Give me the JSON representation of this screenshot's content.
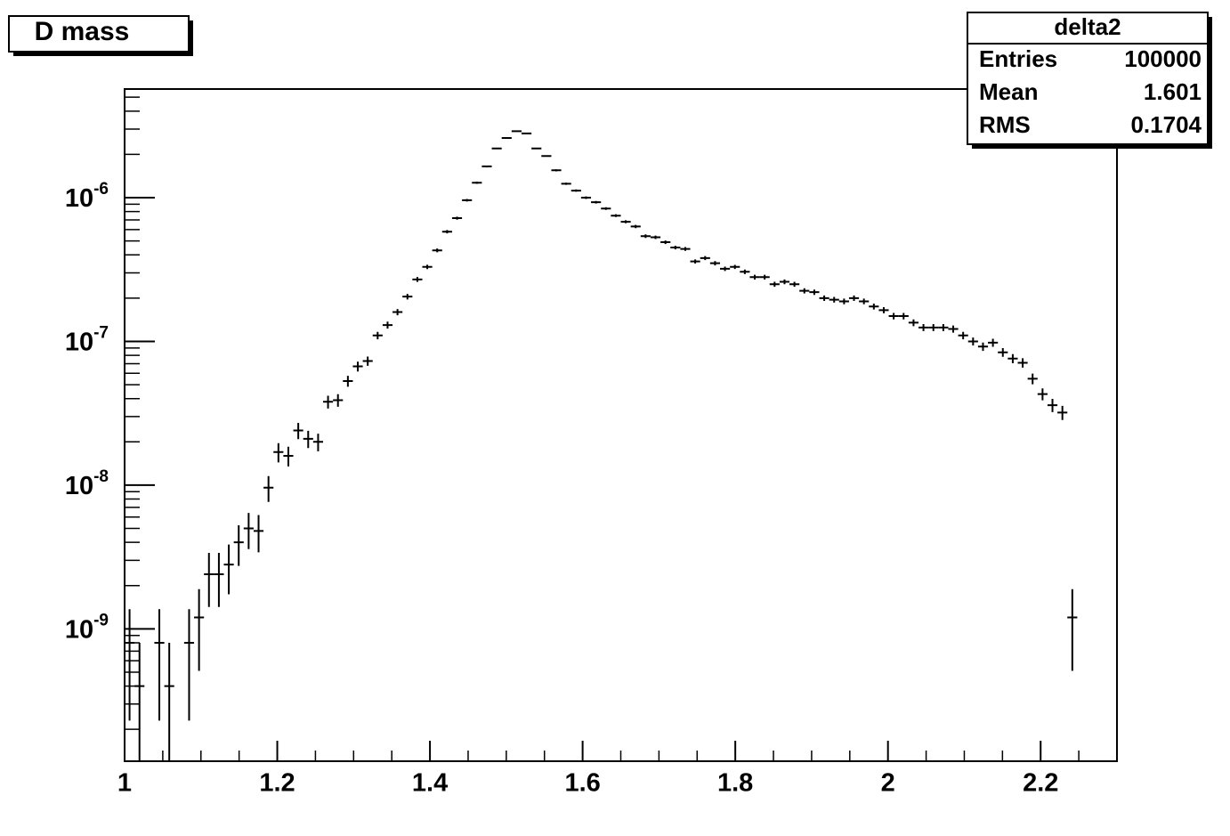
{
  "chart_data": {
    "type": "histogram",
    "title": "D mass",
    "log_y": true,
    "color": "#000000",
    "bins": [
      1,
      1.013,
      1.026,
      1.039,
      1.052,
      1.065,
      1.078,
      1.091,
      1.104,
      1.117,
      1.13,
      1.143,
      1.156,
      1.169,
      1.182,
      1.195,
      1.208,
      1.221,
      1.234,
      1.247,
      1.26,
      1.273,
      1.286,
      1.299,
      1.312,
      1.325,
      1.338,
      1.351,
      1.364,
      1.377,
      1.39,
      1.403,
      1.416,
      1.429,
      1.442,
      1.455,
      1.468,
      1.481,
      1.494,
      1.507,
      1.52,
      1.533,
      1.546,
      1.559,
      1.572,
      1.585,
      1.598,
      1.611,
      1.624,
      1.637,
      1.65,
      1.663,
      1.676,
      1.689,
      1.702,
      1.715,
      1.728,
      1.741,
      1.754,
      1.767,
      1.78,
      1.793,
      1.806,
      1.819,
      1.832,
      1.845,
      1.858,
      1.871,
      1.884,
      1.897,
      1.91,
      1.923,
      1.936,
      1.949,
      1.962,
      1.975,
      1.988,
      2.001,
      2.014,
      2.027,
      2.04,
      2.053,
      2.066,
      2.079,
      2.092,
      2.105,
      2.118,
      2.131,
      2.144,
      2.157,
      2.17,
      2.183,
      2.196,
      2.209,
      2.222,
      2.235,
      2.248,
      2.261,
      2.274,
      2.287,
      2.3
    ],
    "values": [
      8e-10,
      4e-10,
      null,
      8e-10,
      4e-10,
      null,
      8e-10,
      1.2e-09,
      2.4e-09,
      2.4e-09,
      2.8e-09,
      4e-09,
      5e-09,
      4.8e-09,
      9.6e-09,
      1.7e-08,
      1.6e-08,
      2.4e-08,
      2.1e-08,
      2e-08,
      3.8e-08,
      3.9e-08,
      5.3e-08,
      6.7e-08,
      7.3e-08,
      1.1e-07,
      1.3e-07,
      1.6e-07,
      2.05e-07,
      2.7e-07,
      3.3e-07,
      4.3e-07,
      5.8e-07,
      7.2e-07,
      9.6e-07,
      1.27e-06,
      1.65e-06,
      2.2e-06,
      2.6e-06,
      2.9e-06,
      2.8e-06,
      2.2e-06,
      1.95e-06,
      1.55e-06,
      1.25e-06,
      1.12e-06,
      1e-06,
      9.3e-07,
      8.4e-07,
      7.5e-07,
      6.8e-07,
      6.3e-07,
      5.4e-07,
      5.3e-07,
      4.9e-07,
      4.5e-07,
      4.4e-07,
      3.6e-07,
      3.8e-07,
      3.5e-07,
      3.2e-07,
      3.3e-07,
      3.05e-07,
      2.8e-07,
      2.8e-07,
      2.5e-07,
      2.6e-07,
      2.5e-07,
      2.25e-07,
      2.2e-07,
      2e-07,
      1.95e-07,
      1.9e-07,
      2e-07,
      1.9e-07,
      1.75e-07,
      1.65e-07,
      1.5e-07,
      1.5e-07,
      1.35e-07,
      1.25e-07,
      1.25e-07,
      1.25e-07,
      1.22e-07,
      1.1e-07,
      1e-07,
      9.2e-08,
      9.8e-08,
      8.4e-08,
      7.6e-08,
      7.1e-08,
      5.5e-08,
      4.3e-08,
      3.6e-08,
      3.2e-08,
      1.2e-09,
      null,
      null,
      null,
      null
    ],
    "errors": [
      5.7e-10,
      4e-10,
      null,
      5.7e-10,
      4e-10,
      null,
      5.7e-10,
      6.9e-10,
      9.8e-10,
      9.8e-10,
      1.06e-09,
      1.26e-09,
      1.41e-09,
      1.39e-09,
      1.96e-09,
      2.6e-09,
      2.5e-09,
      3.1e-09,
      2.9e-09,
      2.8e-09,
      3.9e-09,
      3.9e-09,
      4.6e-09,
      5.2e-09,
      5.4e-09,
      6.6e-09,
      7.2e-09,
      8e-09,
      9.1e-09,
      1.04e-08,
      1.15e-08,
      1.31e-08,
      1.52e-08,
      1.7e-08,
      1.96e-08,
      2.25e-08,
      2.57e-08,
      2.97e-08,
      3.2e-08,
      3.4e-08,
      3.3e-08,
      3e-08,
      2.8e-08,
      2.5e-08,
      2.2e-08,
      2.1e-08,
      2e-08,
      1.9e-08,
      1.8e-08,
      1.7e-08,
      1.65e-08,
      1.6e-08,
      1.5e-08,
      1.5e-08,
      1.4e-08,
      1.3e-08,
      1.3e-08,
      1.2e-08,
      1.2e-08,
      1.2e-08,
      1.1e-08,
      1.1e-08,
      1.1e-08,
      1.06e-08,
      1.06e-08,
      1e-08,
      1e-08,
      1e-08,
      9.5e-09,
      9.4e-09,
      8.9e-09,
      8.8e-09,
      8.7e-09,
      8.9e-09,
      8.7e-09,
      8.4e-09,
      8.1e-09,
      7.7e-09,
      7.7e-09,
      7.3e-09,
      7.1e-09,
      7.1e-09,
      7.1e-09,
      7e-09,
      6.6e-09,
      6.3e-09,
      6.1e-09,
      6.3e-09,
      5.8e-09,
      5.5e-09,
      5.3e-09,
      4.7e-09,
      4.1e-09,
      3.8e-09,
      3.6e-09,
      6.9e-10,
      null,
      null,
      null,
      null
    ],
    "xlim": [
      1,
      2.3
    ],
    "xticks": [
      1,
      1.2,
      1.4,
      1.6,
      1.8,
      2,
      2.2
    ],
    "xminorticks": [
      1.05,
      1.1,
      1.15,
      1.25,
      1.3,
      1.35,
      1.45,
      1.5,
      1.55,
      1.65,
      1.7,
      1.75,
      1.85,
      1.9,
      1.95,
      2.05,
      2.1,
      2.15,
      2.25
    ],
    "ylim": [
      1.2e-10,
      5.7e-06
    ],
    "yticks": [
      {
        "value": 1e-09,
        "label": "10-9"
      },
      {
        "value": 1e-08,
        "label": "10-8"
      },
      {
        "value": 1e-07,
        "label": "10-7"
      },
      {
        "value": 1e-06,
        "label": "10-6"
      }
    ],
    "yminorticks": [
      2e-10,
      3e-10,
      4e-10,
      5e-10,
      6e-10,
      7e-10,
      8e-10,
      9e-10,
      2e-09,
      3e-09,
      4e-09,
      5e-09,
      6e-09,
      7e-09,
      8e-09,
      9e-09,
      2e-08,
      3e-08,
      4e-08,
      5e-08,
      6e-08,
      7e-08,
      8e-08,
      9e-08,
      2e-07,
      3e-07,
      4e-07,
      5e-07,
      6e-07,
      7e-07,
      8e-07,
      9e-07,
      2e-06,
      3e-06,
      4e-06,
      5e-06
    ],
    "stats": {
      "title": "delta2",
      "rows": [
        [
          "Entries",
          100000
        ],
        [
          "Mean",
          1.601
        ],
        [
          "RMS",
          0.1704
        ]
      ]
    }
  }
}
